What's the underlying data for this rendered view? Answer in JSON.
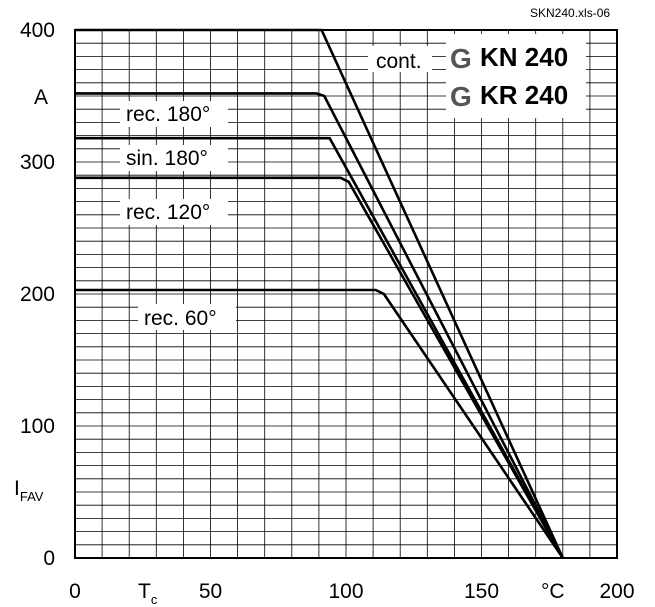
{
  "file_id": "SKN240.xls-06",
  "devices": [
    {
      "logo": "G",
      "name": "KN 240"
    },
    {
      "logo": "G",
      "name": "KR 240"
    }
  ],
  "chart_data": {
    "type": "line",
    "xlabel": {
      "symbol": "T",
      "subscript": "c",
      "unit": "°C"
    },
    "ylabel": {
      "symbol": "I",
      "subscript": "FAV",
      "unit": "A"
    },
    "xlim": [
      0,
      200
    ],
    "ylim": [
      0,
      400
    ],
    "x_ticks": [
      0,
      50,
      100,
      150,
      200
    ],
    "y_ticks": [
      0,
      100,
      200,
      300,
      400
    ],
    "x_tick_labels": [
      "0",
      "50",
      "100",
      "150",
      "200"
    ],
    "y_tick_labels": [
      "0",
      "100",
      "200",
      "300",
      "400"
    ],
    "grid": true,
    "series": [
      {
        "name": "cont.",
        "points": [
          [
            0,
            400
          ],
          [
            91,
            400
          ],
          [
            180,
            0
          ]
        ]
      },
      {
        "name": "rec. 180°",
        "points": [
          [
            0,
            352
          ],
          [
            89,
            352
          ],
          [
            92,
            350
          ],
          [
            180,
            0
          ]
        ]
      },
      {
        "name": "sin. 180°",
        "points": [
          [
            0,
            318
          ],
          [
            94,
            318
          ],
          [
            180,
            0
          ]
        ]
      },
      {
        "name": "rec. 120°",
        "points": [
          [
            0,
            288
          ],
          [
            98,
            288
          ],
          [
            101,
            285
          ],
          [
            180,
            0
          ]
        ]
      },
      {
        "name": "rec. 60°",
        "points": [
          [
            0,
            203
          ],
          [
            111,
            203
          ],
          [
            114,
            200
          ],
          [
            180,
            0
          ]
        ]
      }
    ]
  }
}
